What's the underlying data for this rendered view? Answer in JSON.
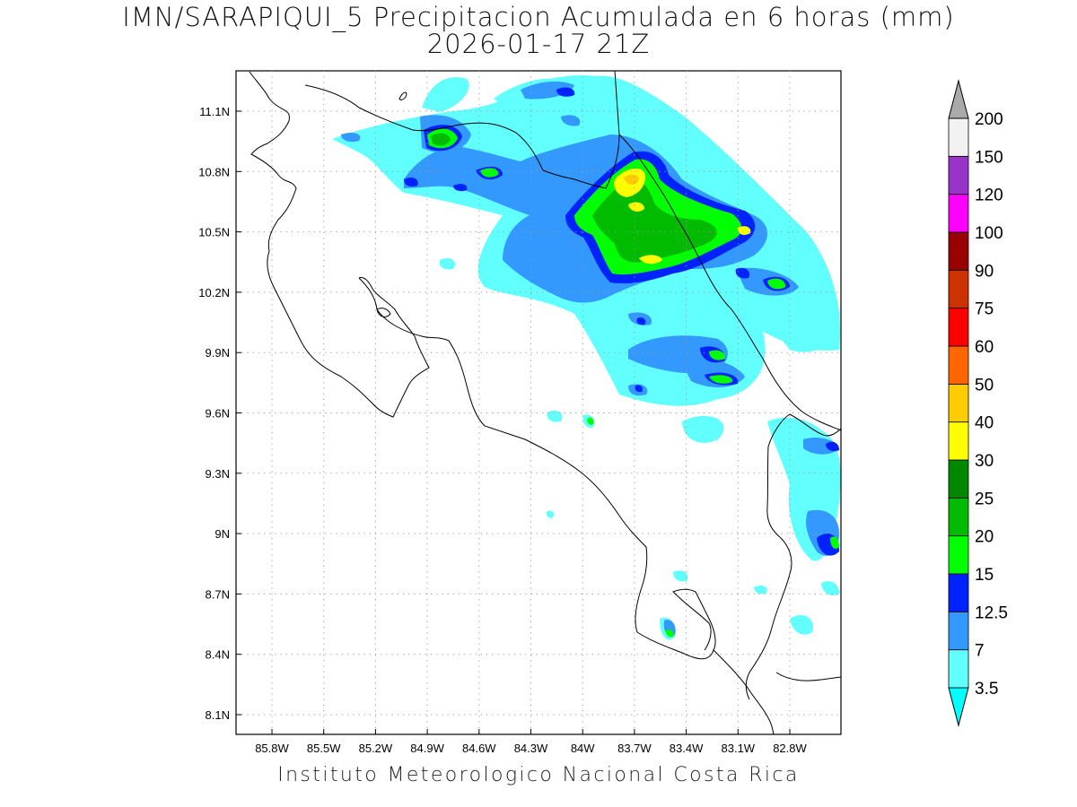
{
  "title": {
    "line1": "IMN/SARAPIQUI_5 Precipitacion Acumulada en 6 horas (mm)",
    "line2": "2026-01-17 21Z"
  },
  "footer": "Instituto Meteorologico Nacional Costa Rica",
  "map": {
    "lon_ticks": [
      "85.8W",
      "85.5W",
      "85.2W",
      "84.9W",
      "84.6W",
      "84.3W",
      "84W",
      "83.7W",
      "83.4W",
      "83.1W",
      "82.8W"
    ],
    "lat_ticks": [
      "11.1N",
      "10.8N",
      "10.5N",
      "10.2N",
      "9.9N",
      "9.6N",
      "9.3N",
      "9N",
      "8.7N",
      "8.4N",
      "8.1N"
    ],
    "grid": true
  },
  "colorbar": {
    "levels": [
      "3.5",
      "7",
      "12.5",
      "15",
      "20",
      "25",
      "30",
      "40",
      "50",
      "60",
      "75",
      "90",
      "100",
      "120",
      "150",
      "200"
    ],
    "colors": [
      "#00ffff",
      "#62ffff",
      "#3399ff",
      "#0022ff",
      "#00ff00",
      "#00bb00",
      "#008800",
      "#ffff00",
      "#ffcc00",
      "#ff6600",
      "#ff0000",
      "#cc3300",
      "#990000",
      "#ff00ff",
      "#9933cc",
      "#f2f2f2",
      "#aaaaaa"
    ]
  }
}
